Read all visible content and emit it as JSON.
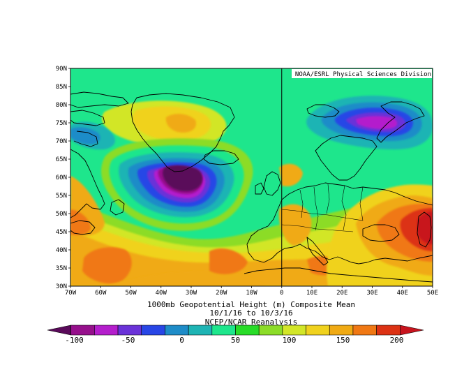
{
  "map": {
    "credit": "NOAA/ESRL Physical Sciences Division",
    "lat_labels": [
      "90N",
      "85N",
      "80N",
      "75N",
      "70N",
      "65N",
      "60N",
      "55N",
      "50N",
      "45N",
      "40N",
      "35N",
      "30N"
    ],
    "lon_labels": [
      "70W",
      "60W",
      "50W",
      "40W",
      "30W",
      "20W",
      "10W",
      "0",
      "10E",
      "20E",
      "30E",
      "40E",
      "50E"
    ],
    "lat_range": [
      30,
      90
    ],
    "lon_range": [
      -70,
      50
    ],
    "meridian_line_lon": 0
  },
  "title": {
    "line1": "1000mb Geopotential Height (m) Composite Mean",
    "line2": "10/1/16  to 10/3/16",
    "line3": "NCEP/NCAR Reanalysis"
  },
  "colorbar": {
    "colors": [
      "#5a0a5a",
      "#96108c",
      "#b41ecc",
      "#6a32d8",
      "#2846e6",
      "#1e8cc8",
      "#1eb4b4",
      "#1ee68c",
      "#28dc28",
      "#8cdc28",
      "#d2e628",
      "#f0d21e",
      "#f0aa14",
      "#f07814",
      "#dc3214",
      "#c8141e"
    ],
    "tick_labels": [
      "-100",
      "-50",
      "0",
      "50",
      "100",
      "150",
      "200"
    ],
    "tick_values": [
      -100,
      -50,
      0,
      50,
      100,
      150,
      200
    ],
    "range": [
      -125,
      225
    ]
  },
  "field_colors": {
    "base": "#1ee68c",
    "warm_low": "#8cdc28",
    "warm_mid": "#d2e628",
    "warm": "#f0d21e",
    "orange": "#f0aa14",
    "dark_orange": "#f07814",
    "red": "#dc3214",
    "deep_red": "#c8141e",
    "teal": "#1eb4b4",
    "cyan": "#1e8cc8",
    "blue": "#2846e6",
    "indigo": "#6a32d8",
    "violet": "#b41ecc",
    "purple": "#96108c",
    "dark_purple": "#5a0a5a"
  }
}
